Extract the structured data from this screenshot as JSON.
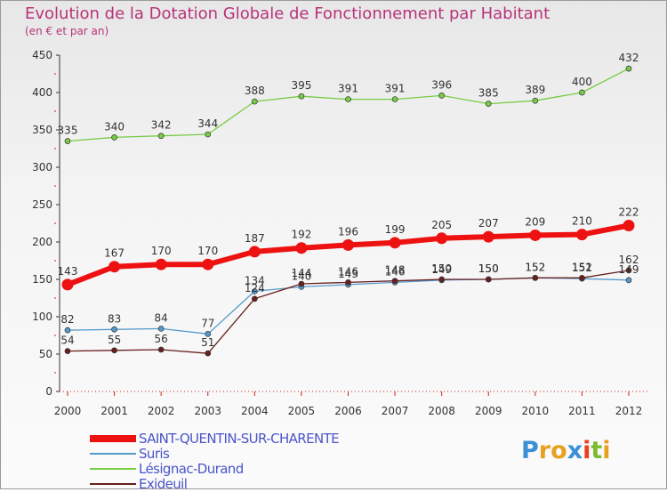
{
  "chart_data": {
    "type": "line",
    "title": "Evolution de la Dotation Globale de Fonctionnement par Habitant",
    "subtitle": "(en € et par an)",
    "xlabel": "",
    "ylabel": "",
    "categories": [
      "2000",
      "2001",
      "2002",
      "2003",
      "2004",
      "2005",
      "2006",
      "2007",
      "2008",
      "2009",
      "2010",
      "2011",
      "2012"
    ],
    "ylim": [
      0,
      450
    ],
    "yticks": [
      0,
      50,
      100,
      150,
      200,
      250,
      300,
      350,
      400,
      450
    ],
    "grid": false,
    "legend_position": "bottom-left",
    "series": [
      {
        "name": "SAINT-QUENTIN-SUR-CHARENTE",
        "color": "#ee1111",
        "highlight": true,
        "values": [
          143,
          167,
          170,
          170,
          187,
          192,
          196,
          199,
          205,
          207,
          209,
          210,
          222
        ]
      },
      {
        "name": "Suris",
        "color": "#5599cc",
        "highlight": false,
        "values": [
          82,
          83,
          84,
          77,
          134,
          140,
          143,
          146,
          149,
          150,
          152,
          151,
          149
        ]
      },
      {
        "name": "Lésignac-Durand",
        "color": "#77cc44",
        "highlight": false,
        "values": [
          335,
          340,
          342,
          344,
          388,
          395,
          391,
          391,
          396,
          385,
          389,
          400,
          432
        ]
      },
      {
        "name": "Exideuil",
        "color": "#6a1f1f",
        "highlight": false,
        "values": [
          54,
          55,
          56,
          51,
          124,
          144,
          146,
          148,
          150,
          150,
          152,
          152,
          162
        ]
      }
    ]
  },
  "logo": {
    "letters": [
      "P",
      "r",
      "o",
      "x",
      "i",
      "t",
      "i"
    ],
    "colors": [
      "#3a8fd6",
      "#e8a020",
      "#e8a020",
      "#3a8fd6",
      "#e84020",
      "#7abb30",
      "#e8a020"
    ]
  }
}
